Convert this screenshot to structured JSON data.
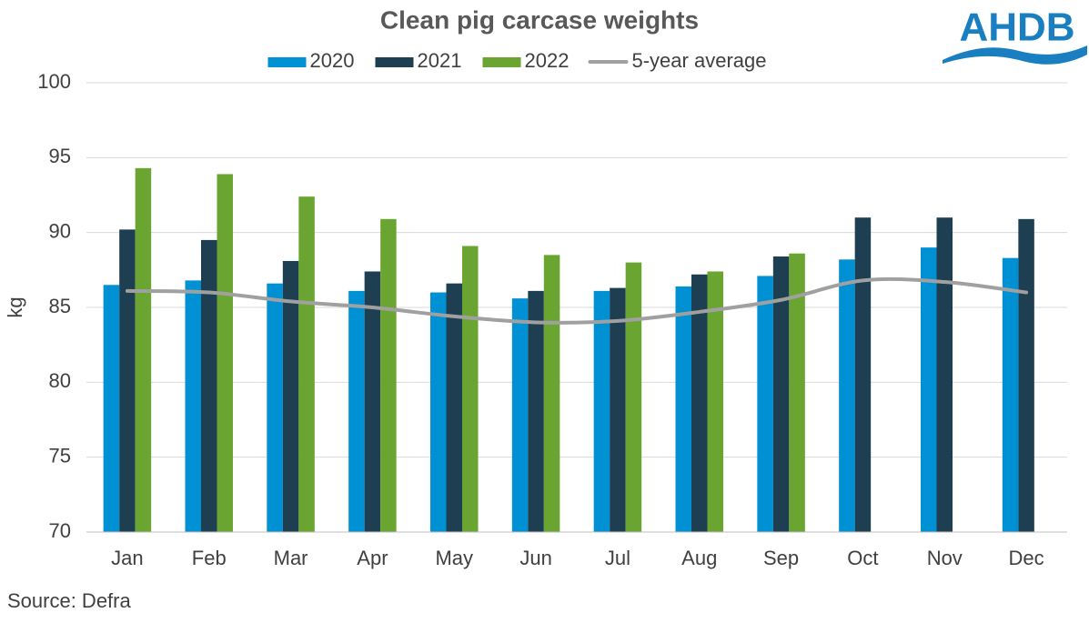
{
  "chart_data": {
    "type": "bar",
    "title": "Clean pig carcase weights",
    "logo": "AHDB",
    "y_label": "kg",
    "source": "Source: Defra",
    "categories": [
      "Jan",
      "Feb",
      "Mar",
      "Apr",
      "May",
      "Jun",
      "Jul",
      "Aug",
      "Sep",
      "Oct",
      "Nov",
      "Dec"
    ],
    "series": [
      {
        "name": "2020",
        "color": "#0090d4",
        "values": [
          86.5,
          86.8,
          86.6,
          86.1,
          86.0,
          85.6,
          86.1,
          86.4,
          87.1,
          88.2,
          89.0,
          88.3
        ]
      },
      {
        "name": "2021",
        "color": "#1e3f52",
        "values": [
          90.2,
          89.5,
          88.1,
          87.4,
          86.6,
          86.1,
          86.3,
          87.2,
          88.4,
          91.0,
          91.0,
          90.9
        ]
      },
      {
        "name": "2022",
        "color": "#6aa532",
        "values": [
          94.3,
          93.9,
          92.4,
          90.9,
          89.1,
          88.5,
          88.0,
          87.4,
          88.6,
          null,
          null,
          null
        ]
      },
      {
        "name": "5-year average",
        "color": "#a0a0a0",
        "type": "line",
        "values": [
          86.1,
          86.0,
          85.4,
          85.0,
          84.4,
          84.0,
          84.1,
          84.7,
          85.5,
          86.8,
          86.7,
          86.0
        ]
      }
    ],
    "ylim": [
      70,
      100
    ],
    "yticks": [
      70,
      75,
      80,
      85,
      90,
      95,
      100
    ],
    "grid": true
  }
}
